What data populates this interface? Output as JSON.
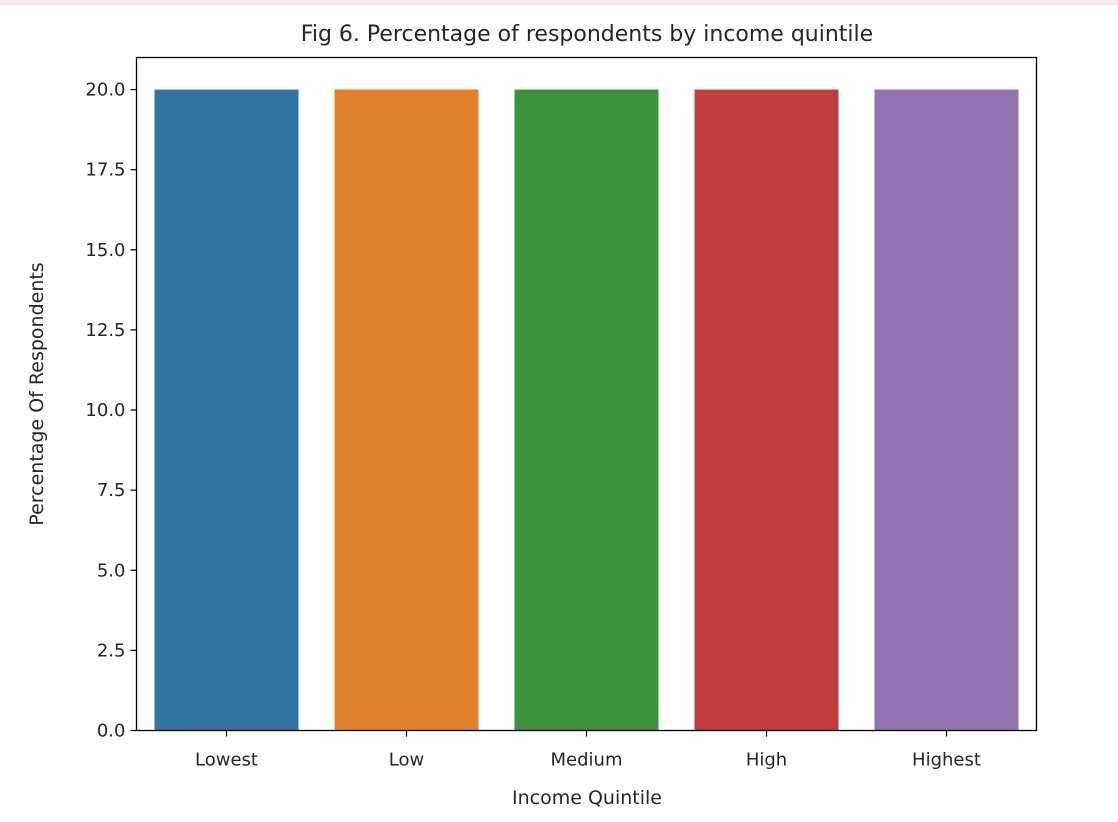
{
  "chart_data": {
    "type": "bar",
    "title": "Fig 6. Percentage of respondents by income quintile",
    "xlabel": "Income Quintile",
    "ylabel": "Percentage Of Respondents",
    "categories": [
      "Lowest",
      "Low",
      "Medium",
      "High",
      "Highest"
    ],
    "values": [
      20.0,
      20.0,
      20.0,
      20.0,
      20.0
    ],
    "colors": [
      "#3274a1",
      "#e1812c",
      "#3a923a",
      "#c03d3e",
      "#9372b2"
    ],
    "ylim": [
      0,
      21
    ],
    "yticks": [
      0.0,
      2.5,
      5.0,
      7.5,
      10.0,
      12.5,
      15.0,
      17.5,
      20.0
    ],
    "ytick_labels": [
      "0.0",
      "2.5",
      "5.0",
      "7.5",
      "10.0",
      "12.5",
      "15.0",
      "17.5",
      "20.0"
    ],
    "grid": false,
    "legend": "none"
  }
}
